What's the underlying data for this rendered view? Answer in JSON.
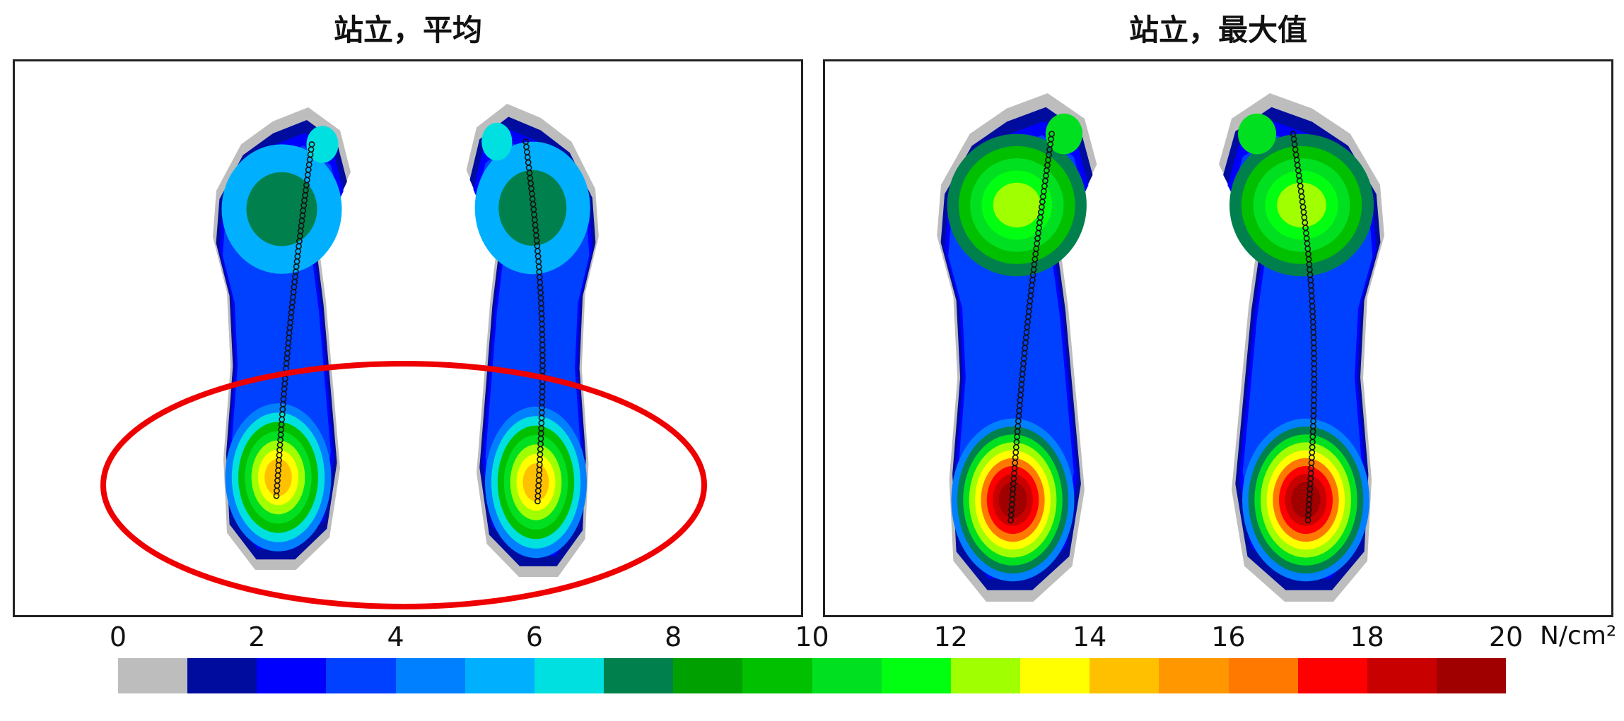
{
  "chart_data": {
    "type": "heatmap",
    "panels": [
      {
        "title": "站立，平均",
        "max_pressure_zones": [
          "forefoot ~8-9",
          "heel ~16"
        ],
        "highlight": "red-ellipse-around-heels"
      },
      {
        "title": "站立，最大值",
        "max_pressure_zones": [
          "forefoot ~10-15",
          "heel ~20"
        ]
      }
    ],
    "colorbar": {
      "ticks": [
        "0",
        "2",
        "4",
        "6",
        "8",
        "10",
        "12",
        "14",
        "16",
        "18",
        "20"
      ],
      "unit": "N/cm²",
      "range": [
        0,
        20
      ],
      "colors": [
        "#bdbdbd",
        "#000c9e",
        "#0000ff",
        "#0040ff",
        "#0080ff",
        "#00b0ff",
        "#00e0e0",
        "#00804c",
        "#00a000",
        "#00c000",
        "#00e020",
        "#00ff10",
        "#a0ff00",
        "#ffff00",
        "#ffc000",
        "#ff9800",
        "#ff7800",
        "#ff0000",
        "#c80000",
        "#a00000"
      ]
    }
  }
}
